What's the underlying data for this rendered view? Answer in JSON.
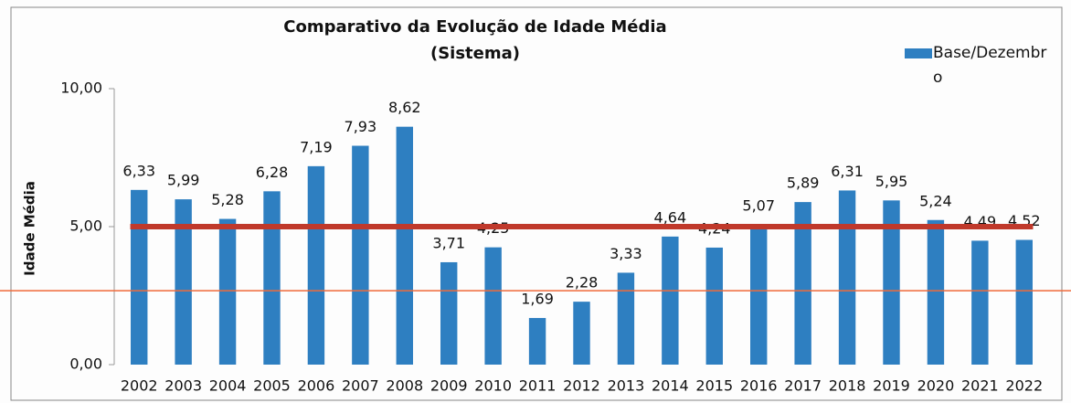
{
  "chart_data": {
    "type": "bar",
    "title": "Comparativo da Evolução de Idade Média",
    "subtitle": "(Sistema)",
    "y_label": "Idade Média",
    "categories": [
      "2002",
      "2003",
      "2004",
      "2005",
      "2006",
      "2007",
      "2008",
      "2009",
      "2010",
      "2011",
      "2012",
      "2013",
      "2014",
      "2015",
      "2016",
      "2017",
      "2018",
      "2019",
      "2020",
      "2021",
      "2022"
    ],
    "series": [
      {
        "name": "Base/Dezembro",
        "color": "#2e7fc1",
        "values": [
          6.33,
          5.99,
          5.28,
          6.28,
          7.19,
          7.93,
          8.62,
          3.71,
          4.25,
          1.69,
          2.28,
          3.33,
          4.64,
          4.24,
          5.07,
          5.89,
          6.31,
          5.95,
          5.24,
          4.49,
          4.52
        ],
        "value_labels": [
          "6,33",
          "5,99",
          "5,28",
          "6,28",
          "7,19",
          "7,93",
          "8,62",
          "3,71",
          "4,25",
          "1,69",
          "2,28",
          "3,33",
          "4,64",
          "4,24",
          "5,07",
          "5,89",
          "6,31",
          "5,95",
          "5,24",
          "4,49",
          "4,52"
        ]
      }
    ],
    "ylim": [
      0,
      10
    ],
    "yticks": [
      {
        "value": 0,
        "label": "0,00"
      },
      {
        "value": 5,
        "label": "5,00"
      },
      {
        "value": 10,
        "label": "10,00"
      }
    ],
    "reference_lines": [
      {
        "value": 5,
        "color": "#c0392b"
      },
      {
        "value": 2.68,
        "color": "#f06a3a"
      }
    ],
    "legend": "top-right"
  }
}
